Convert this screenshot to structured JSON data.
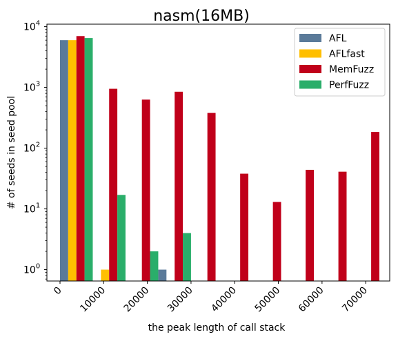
{
  "chart_data": {
    "type": "bar",
    "title": "nasm(16MB)",
    "xlabel": "the peak length of call stack",
    "ylabel": "# of seeds in seed pool",
    "y_scale": "log",
    "ylim": [
      0.65,
      11000
    ],
    "y_ticks": [
      {
        "value": 1,
        "base": "10",
        "exp": "0"
      },
      {
        "value": 10,
        "base": "10",
        "exp": "1"
      },
      {
        "value": 100,
        "base": "10",
        "exp": "2"
      },
      {
        "value": 1000,
        "base": "10",
        "exp": "3"
      },
      {
        "value": 10000,
        "base": "10",
        "exp": "4"
      }
    ],
    "xlim": [
      -3000,
      75500
    ],
    "x_ticks": [
      "0",
      "10000",
      "20000",
      "30000",
      "40000",
      "50000",
      "60000",
      "70000"
    ],
    "x_tick_values": [
      0,
      10000,
      20000,
      30000,
      40000,
      50000,
      60000,
      70000
    ],
    "bin_width": 7500,
    "bin_starts": [
      0,
      7500,
      15000,
      22500,
      30000,
      37500,
      45000,
      52500,
      60000,
      67500
    ],
    "legend_position": "upper right",
    "grid": false,
    "series": [
      {
        "name": "AFL",
        "color": "#5a7a99",
        "values": [
          6000,
          null,
          null,
          1,
          null,
          null,
          null,
          null,
          null,
          null
        ]
      },
      {
        "name": "AFLfast",
        "color": "#ffbf00",
        "values": [
          6000,
          1,
          null,
          null,
          null,
          null,
          null,
          null,
          null,
          null
        ]
      },
      {
        "name": "MemFuzz",
        "color": "#c0001a",
        "values": [
          7000,
          950,
          630,
          850,
          380,
          38,
          13,
          44,
          41,
          185
        ]
      },
      {
        "name": "PerfFuzz",
        "color": "#2aae6a",
        "values": [
          6500,
          17,
          2,
          4,
          null,
          null,
          null,
          null,
          null,
          null
        ]
      }
    ]
  }
}
